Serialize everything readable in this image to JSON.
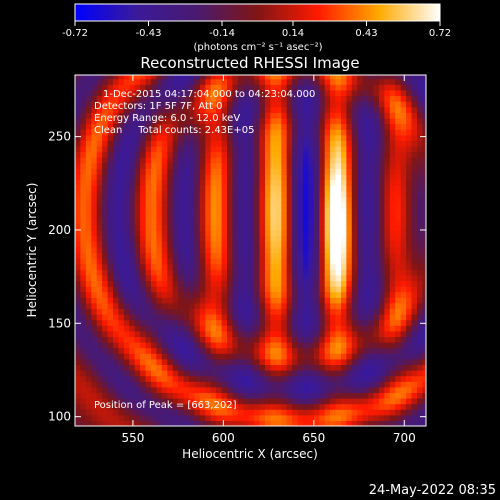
{
  "colorbar": {
    "ticks": [
      "-0.72",
      "-0.43",
      "-0.14",
      "0.14",
      "0.43",
      "0.72"
    ],
    "tick_values": [
      -0.72,
      -0.43,
      -0.14,
      0.14,
      0.43,
      0.72
    ],
    "unit_label": "(photons cm⁻² s⁻¹ asec⁻²)",
    "colormap": "blue-purple-red-yellow-white",
    "stops": [
      "#0000ff",
      "#3a1a9a",
      "#4a1a70",
      "#801515",
      "#ff1a00",
      "#ffaa00",
      "#ffffff"
    ]
  },
  "chart_data": {
    "type": "heatmap",
    "title": "Reconstructed RHESSI Image",
    "xlabel": "Heliocentric X (arcsec)",
    "ylabel": "Heliocentric Y (arcsec)",
    "xlim": [
      518,
      712
    ],
    "ylim": [
      95,
      283
    ],
    "x_ticks": [
      550,
      600,
      650,
      700
    ],
    "y_ticks": [
      100,
      150,
      200,
      250
    ],
    "x_tick_labels": [
      "550",
      "600",
      "650",
      "700"
    ],
    "y_tick_labels": [
      "100",
      "150",
      "200",
      "250"
    ],
    "value_range": [
      -0.72,
      0.72
    ],
    "peak": [
      663,
      202
    ],
    "annotations": {
      "time": "1-Dec-2015 04:17:04.000 to 04:23:04.000",
      "detectors": "Detectors: 1F 5F 7F, Att 0",
      "energy": "Energy Range: 6.0 - 12.0 keV",
      "method": "Clean     Total counts: 2.43E+05",
      "peak_text": "Position of Peak = [663,202]"
    }
  },
  "footer": {
    "timestamp": "24-May-2022 08:35"
  }
}
